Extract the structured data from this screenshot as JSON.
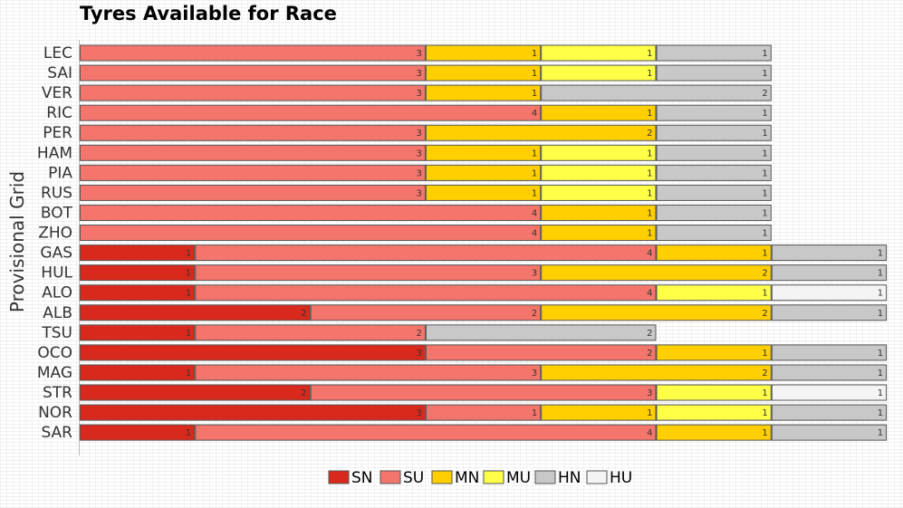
{
  "title": "Tyres Available for Race",
  "ylabel": "Provisional Grid",
  "chart_data": {
    "type": "bar",
    "orientation": "horizontal-stacked",
    "title": "Tyres Available for Race",
    "ylabel": "Provisional Grid",
    "xlabel": "",
    "xlim": [
      0,
      7
    ],
    "grid": false,
    "legend_position": "bottom",
    "categories": [
      "LEC",
      "SAI",
      "VER",
      "RIC",
      "PER",
      "HAM",
      "PIA",
      "RUS",
      "BOT",
      "ZHO",
      "GAS",
      "HUL",
      "ALO",
      "ALB",
      "TSU",
      "OCO",
      "MAG",
      "STR",
      "NOR",
      "SAR"
    ],
    "series": [
      {
        "name": "SN",
        "color": "#d9291c",
        "values": [
          0,
          0,
          0,
          0,
          0,
          0,
          0,
          0,
          0,
          0,
          1,
          1,
          1,
          2,
          1,
          3,
          1,
          2,
          3,
          1
        ]
      },
      {
        "name": "SU",
        "color": "#f4756b",
        "values": [
          3,
          3,
          3,
          4,
          3,
          3,
          3,
          3,
          4,
          4,
          4,
          3,
          4,
          2,
          2,
          2,
          3,
          3,
          1,
          4
        ]
      },
      {
        "name": "MN",
        "color": "#ffcf00",
        "values": [
          1,
          1,
          1,
          1,
          2,
          1,
          1,
          1,
          1,
          1,
          1,
          2,
          0,
          2,
          0,
          1,
          2,
          0,
          1,
          1
        ]
      },
      {
        "name": "MU",
        "color": "#ffff47",
        "values": [
          1,
          1,
          0,
          0,
          0,
          1,
          1,
          1,
          0,
          0,
          0,
          0,
          1,
          0,
          0,
          0,
          0,
          1,
          1,
          0
        ]
      },
      {
        "name": "HN",
        "color": "#c8c8c8",
        "values": [
          1,
          1,
          2,
          1,
          1,
          1,
          1,
          1,
          1,
          1,
          1,
          1,
          0,
          1,
          2,
          1,
          1,
          0,
          1,
          1
        ]
      },
      {
        "name": "HU",
        "color": "#f4f4f4",
        "values": [
          0,
          0,
          0,
          0,
          0,
          0,
          0,
          0,
          0,
          0,
          0,
          0,
          1,
          0,
          0,
          0,
          0,
          1,
          0,
          0
        ]
      }
    ]
  }
}
